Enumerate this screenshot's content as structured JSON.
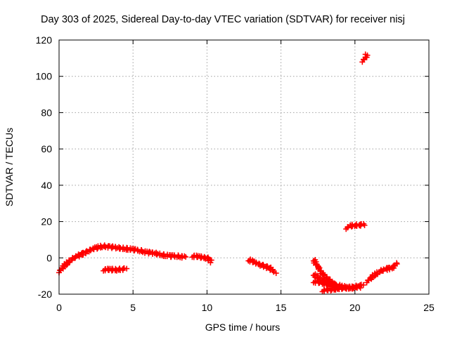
{
  "chart_data": {
    "type": "scatter",
    "title": "Day 303 of 2025, Sidereal Day-to-day VTEC variation (SDTVAR) for receiver nisj",
    "xlabel": "GPS time / hours",
    "ylabel": "SDTVAR / TECUs",
    "xlim": [
      0,
      25
    ],
    "ylim": [
      -20,
      120
    ],
    "xticks": [
      0,
      5,
      10,
      15,
      20,
      25
    ],
    "yticks": [
      -20,
      0,
      20,
      40,
      60,
      80,
      100,
      120
    ],
    "grid": true,
    "color": "#ff0000",
    "marker": "plus",
    "series": [
      {
        "segments": [
          [
            [
              0.0,
              -7.5
            ],
            [
              0.3,
              -5
            ],
            [
              0.6,
              -2.5
            ],
            [
              1.0,
              0
            ],
            [
              1.5,
              2
            ],
            [
              2.0,
              4
            ],
            [
              2.5,
              5.5
            ],
            [
              3.0,
              6.5
            ],
            [
              3.5,
              6
            ],
            [
              4.0,
              5.5
            ],
            [
              4.5,
              5
            ],
            [
              5.0,
              4.5
            ],
            [
              5.5,
              4
            ],
            [
              6.0,
              3
            ],
            [
              6.5,
              2.5
            ],
            [
              7.0,
              1.5
            ],
            [
              7.5,
              1
            ],
            [
              8.0,
              1
            ],
            [
              8.5,
              0.5
            ]
          ],
          [
            [
              3.0,
              -6.5
            ],
            [
              3.5,
              -6.5
            ],
            [
              4.0,
              -6.5
            ],
            [
              4.5,
              -6
            ]
          ],
          [
            [
              9.0,
              1
            ],
            [
              9.5,
              0.5
            ],
            [
              10.0,
              0
            ],
            [
              10.3,
              -2
            ]
          ],
          [
            [
              12.8,
              -1
            ],
            [
              13.2,
              -2.5
            ],
            [
              13.7,
              -4
            ],
            [
              14.2,
              -5.5
            ],
            [
              14.6,
              -8
            ]
          ],
          [
            [
              17.2,
              -1
            ],
            [
              17.5,
              -5
            ],
            [
              17.8,
              -9
            ],
            [
              18.2,
              -12
            ],
            [
              18.6,
              -15
            ],
            [
              19.0,
              -16
            ]
          ],
          [
            [
              17.2,
              -9
            ],
            [
              17.5,
              -11
            ],
            [
              17.8,
              -12.5
            ],
            [
              18.2,
              -13.5
            ],
            [
              18.6,
              -14.5
            ],
            [
              19.0,
              -15.5
            ],
            [
              19.5,
              -16.5
            ],
            [
              20.0,
              -16
            ],
            [
              20.5,
              -15
            ]
          ],
          [
            [
              17.2,
              -13
            ],
            [
              17.8,
              -14
            ],
            [
              18.3,
              -15
            ],
            [
              18.8,
              -16
            ],
            [
              19.3,
              -16.5
            ],
            [
              19.8,
              -16.5
            ],
            [
              20.3,
              -16
            ]
          ],
          [
            [
              17.8,
              -18
            ],
            [
              18.3,
              -17.5
            ],
            [
              18.8,
              -17
            ],
            [
              19.3,
              -16.5
            ]
          ],
          [
            [
              20.8,
              -13
            ],
            [
              21.1,
              -11
            ],
            [
              21.4,
              -9
            ],
            [
              21.8,
              -7
            ],
            [
              22.2,
              -6
            ],
            [
              22.6,
              -5
            ],
            [
              22.8,
              -3
            ]
          ],
          [
            [
              19.4,
              16.5
            ],
            [
              19.7,
              17.5
            ],
            [
              20.0,
              18
            ],
            [
              20.3,
              18
            ],
            [
              20.6,
              18.5
            ]
          ],
          [
            [
              20.5,
              108.5
            ],
            [
              20.7,
              110
            ],
            [
              20.8,
              112
            ]
          ]
        ]
      }
    ]
  }
}
